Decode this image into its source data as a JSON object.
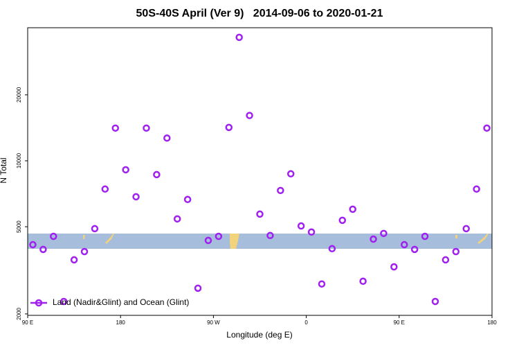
{
  "chart_data": {
    "type": "scatter",
    "title": "50S-40S April (Ver 9)   2014-09-06 to 2020-01-21",
    "x_label": "Longitude (deg E)",
    "y_label": "N Total",
    "log_y": true,
    "xlim": [
      90,
      540
    ],
    "xticks": [
      {
        "value": 90,
        "label": "90 E"
      },
      180,
      {
        "value": 270,
        "label": "90 W"
      },
      {
        "value": 360,
        "label": "0"
      },
      {
        "value": 450,
        "label": "90 E"
      },
      {
        "value": 540,
        "label": "180"
      }
    ],
    "ylim": [
      1970,
      40500
    ],
    "yticks": [
      2000,
      5000,
      10000,
      20000
    ],
    "series": [
      {
        "name": "Land (Nadir&Glint) and Ocean (Glint)",
        "color": "#a020f0",
        "x": [
          95,
          105,
          115,
          125,
          135,
          145,
          155,
          165,
          175,
          185,
          195,
          205,
          215,
          225,
          235,
          245,
          255,
          265,
          275,
          285,
          295,
          305,
          315,
          325,
          335,
          345,
          355,
          365,
          375,
          385,
          395,
          405,
          415,
          425,
          435,
          445,
          455,
          465,
          475,
          485,
          495,
          505,
          515,
          525,
          535
        ],
        "values": [
          4140,
          3940,
          4520,
          2280,
          3530,
          3850,
          4900,
          7430,
          14100,
          9100,
          6850,
          14100,
          8650,
          12700,
          5430,
          6660,
          2620,
          4330,
          4520,
          14200,
          36600,
          16100,
          5710,
          4560,
          7320,
          8720,
          5040,
          4730,
          2740,
          3970,
          5350,
          6010,
          2820,
          4390,
          4660,
          3280,
          4140,
          3940,
          4520,
          2280,
          3530,
          3850,
          4900,
          7430,
          14100
        ]
      }
    ],
    "legend": "bottom-left"
  }
}
